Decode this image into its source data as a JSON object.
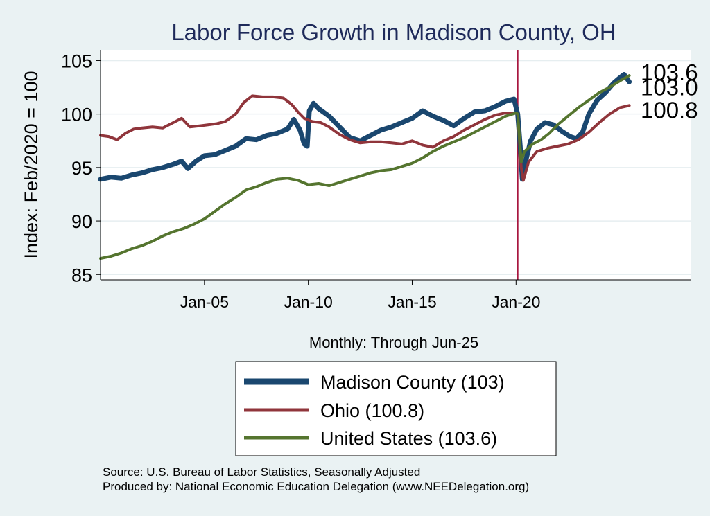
{
  "chart_data": {
    "type": "line",
    "title": "Labor Force Growth in Madison  County, OH",
    "xlabel": "Monthly: Through Jun-25",
    "ylabel": "Index: Feb/2020 = 100",
    "ylim": [
      84.5,
      106
    ],
    "xlim": [
      2000.0,
      2028.4
    ],
    "yticks": [
      85,
      90,
      95,
      100,
      105
    ],
    "xticks": [
      {
        "x": 2005.0,
        "label": "Jan-05"
      },
      {
        "x": 2010.0,
        "label": "Jan-10"
      },
      {
        "x": 2015.0,
        "label": "Jan-15"
      },
      {
        "x": 2020.0,
        "label": "Jan-20"
      }
    ],
    "grid": true,
    "reference_line": {
      "x": 2020.08,
      "color": "#a8163f"
    },
    "end_labels": [
      {
        "series": "United States",
        "value": 103.6,
        "label": "103.6"
      },
      {
        "series": "Madison  County",
        "value": 103.0,
        "label": "103.0"
      },
      {
        "series": "Ohio",
        "value": 100.8,
        "label": "100.8"
      }
    ],
    "series": [
      {
        "name": "Madison  County",
        "legend": "Madison  County (103)",
        "color": "#1a476f",
        "width": 7,
        "points": [
          [
            2000.0,
            93.9
          ],
          [
            2000.5,
            94.1
          ],
          [
            2001.0,
            94.0
          ],
          [
            2001.5,
            94.3
          ],
          [
            2002.0,
            94.5
          ],
          [
            2002.5,
            94.8
          ],
          [
            2003.0,
            95.0
          ],
          [
            2003.5,
            95.3
          ],
          [
            2003.9,
            95.6
          ],
          [
            2004.2,
            94.9
          ],
          [
            2004.6,
            95.6
          ],
          [
            2005.0,
            96.1
          ],
          [
            2005.5,
            96.2
          ],
          [
            2006.0,
            96.6
          ],
          [
            2006.5,
            97.0
          ],
          [
            2007.0,
            97.7
          ],
          [
            2007.5,
            97.6
          ],
          [
            2008.0,
            98.0
          ],
          [
            2008.5,
            98.2
          ],
          [
            2009.0,
            98.6
          ],
          [
            2009.3,
            99.5
          ],
          [
            2009.6,
            98.5
          ],
          [
            2009.8,
            97.2
          ],
          [
            2009.95,
            97.0
          ],
          [
            2010.05,
            100.3
          ],
          [
            2010.25,
            101.0
          ],
          [
            2010.5,
            100.5
          ],
          [
            2011.0,
            99.8
          ],
          [
            2011.5,
            98.8
          ],
          [
            2012.0,
            97.8
          ],
          [
            2012.5,
            97.5
          ],
          [
            2013.0,
            98.0
          ],
          [
            2013.5,
            98.5
          ],
          [
            2014.0,
            98.8
          ],
          [
            2014.5,
            99.2
          ],
          [
            2015.0,
            99.6
          ],
          [
            2015.5,
            100.3
          ],
          [
            2016.0,
            99.8
          ],
          [
            2016.5,
            99.4
          ],
          [
            2017.0,
            98.9
          ],
          [
            2017.5,
            99.6
          ],
          [
            2018.0,
            100.2
          ],
          [
            2018.5,
            100.3
          ],
          [
            2019.0,
            100.7
          ],
          [
            2019.5,
            101.2
          ],
          [
            2019.9,
            101.4
          ],
          [
            2020.08,
            100.0
          ],
          [
            2020.2,
            97.0
          ],
          [
            2020.3,
            93.9
          ],
          [
            2020.45,
            95.5
          ],
          [
            2020.7,
            97.5
          ],
          [
            2021.0,
            98.6
          ],
          [
            2021.4,
            99.2
          ],
          [
            2021.8,
            99.0
          ],
          [
            2022.2,
            98.4
          ],
          [
            2022.6,
            97.9
          ],
          [
            2022.9,
            97.7
          ],
          [
            2023.2,
            98.3
          ],
          [
            2023.5,
            100.0
          ],
          [
            2023.9,
            101.3
          ],
          [
            2024.3,
            102.0
          ],
          [
            2024.7,
            102.9
          ],
          [
            2025.0,
            103.4
          ],
          [
            2025.2,
            103.7
          ],
          [
            2025.45,
            103.0
          ]
        ]
      },
      {
        "name": "Ohio",
        "legend": "Ohio (100.8)",
        "color": "#90353b",
        "width": 4,
        "points": [
          [
            2000.0,
            98.0
          ],
          [
            2000.4,
            97.9
          ],
          [
            2000.8,
            97.6
          ],
          [
            2001.2,
            98.2
          ],
          [
            2001.6,
            98.6
          ],
          [
            2002.0,
            98.7
          ],
          [
            2002.5,
            98.8
          ],
          [
            2003.0,
            98.7
          ],
          [
            2003.5,
            99.2
          ],
          [
            2003.9,
            99.6
          ],
          [
            2004.3,
            98.8
          ],
          [
            2004.8,
            98.9
          ],
          [
            2005.2,
            99.0
          ],
          [
            2005.6,
            99.1
          ],
          [
            2006.0,
            99.3
          ],
          [
            2006.5,
            100.0
          ],
          [
            2006.9,
            101.1
          ],
          [
            2007.3,
            101.7
          ],
          [
            2007.8,
            101.6
          ],
          [
            2008.3,
            101.6
          ],
          [
            2008.8,
            101.5
          ],
          [
            2009.2,
            100.9
          ],
          [
            2009.5,
            100.2
          ],
          [
            2009.8,
            99.6
          ],
          [
            2010.2,
            99.3
          ],
          [
            2010.6,
            99.2
          ],
          [
            2011.0,
            98.8
          ],
          [
            2011.5,
            98.1
          ],
          [
            2012.0,
            97.6
          ],
          [
            2012.5,
            97.3
          ],
          [
            2013.0,
            97.4
          ],
          [
            2013.5,
            97.4
          ],
          [
            2014.0,
            97.3
          ],
          [
            2014.5,
            97.2
          ],
          [
            2015.0,
            97.5
          ],
          [
            2015.5,
            97.1
          ],
          [
            2016.0,
            96.9
          ],
          [
            2016.5,
            97.5
          ],
          [
            2017.0,
            97.9
          ],
          [
            2017.5,
            98.5
          ],
          [
            2018.0,
            99.0
          ],
          [
            2018.5,
            99.5
          ],
          [
            2019.0,
            99.9
          ],
          [
            2019.5,
            100.1
          ],
          [
            2020.0,
            100.1
          ],
          [
            2020.08,
            100.0
          ],
          [
            2020.25,
            95.0
          ],
          [
            2020.35,
            93.8
          ],
          [
            2020.6,
            95.5
          ],
          [
            2021.0,
            96.5
          ],
          [
            2021.5,
            96.8
          ],
          [
            2022.0,
            97.0
          ],
          [
            2022.5,
            97.2
          ],
          [
            2023.0,
            97.6
          ],
          [
            2023.5,
            98.3
          ],
          [
            2024.0,
            99.2
          ],
          [
            2024.5,
            100.0
          ],
          [
            2025.0,
            100.6
          ],
          [
            2025.45,
            100.8
          ]
        ]
      },
      {
        "name": "United States",
        "legend": "United States (103.6)",
        "color": "#55752f",
        "width": 4,
        "points": [
          [
            2000.0,
            86.5
          ],
          [
            2000.5,
            86.7
          ],
          [
            2001.0,
            87.0
          ],
          [
            2001.5,
            87.4
          ],
          [
            2002.0,
            87.7
          ],
          [
            2002.5,
            88.1
          ],
          [
            2003.0,
            88.6
          ],
          [
            2003.5,
            89.0
          ],
          [
            2004.0,
            89.3
          ],
          [
            2004.5,
            89.7
          ],
          [
            2005.0,
            90.2
          ],
          [
            2005.5,
            90.9
          ],
          [
            2006.0,
            91.6
          ],
          [
            2006.5,
            92.2
          ],
          [
            2007.0,
            92.9
          ],
          [
            2007.5,
            93.2
          ],
          [
            2008.0,
            93.6
          ],
          [
            2008.5,
            93.9
          ],
          [
            2009.0,
            94.0
          ],
          [
            2009.5,
            93.8
          ],
          [
            2010.0,
            93.4
          ],
          [
            2010.5,
            93.5
          ],
          [
            2011.0,
            93.3
          ],
          [
            2011.5,
            93.6
          ],
          [
            2012.0,
            93.9
          ],
          [
            2012.5,
            94.2
          ],
          [
            2013.0,
            94.5
          ],
          [
            2013.5,
            94.7
          ],
          [
            2014.0,
            94.8
          ],
          [
            2014.5,
            95.1
          ],
          [
            2015.0,
            95.4
          ],
          [
            2015.5,
            95.9
          ],
          [
            2016.0,
            96.5
          ],
          [
            2016.5,
            97.0
          ],
          [
            2017.0,
            97.4
          ],
          [
            2017.5,
            97.8
          ],
          [
            2018.0,
            98.3
          ],
          [
            2018.5,
            98.8
          ],
          [
            2019.0,
            99.3
          ],
          [
            2019.5,
            99.8
          ],
          [
            2020.0,
            100.1
          ],
          [
            2020.08,
            100.0
          ],
          [
            2020.25,
            95.5
          ],
          [
            2020.4,
            96.5
          ],
          [
            2020.8,
            97.2
          ],
          [
            2021.2,
            97.6
          ],
          [
            2021.6,
            98.2
          ],
          [
            2022.0,
            99.0
          ],
          [
            2022.5,
            99.8
          ],
          [
            2023.0,
            100.6
          ],
          [
            2023.5,
            101.3
          ],
          [
            2024.0,
            102.0
          ],
          [
            2024.5,
            102.5
          ],
          [
            2025.0,
            103.1
          ],
          [
            2025.45,
            103.6
          ]
        ]
      }
    ]
  },
  "footer": {
    "source": "Source: U.S. Bureau of Labor Statistics, Seasonally Adjusted",
    "produced_by": "Produced by: National Economic Education Delegation (www.NEEDelegation.org)"
  }
}
